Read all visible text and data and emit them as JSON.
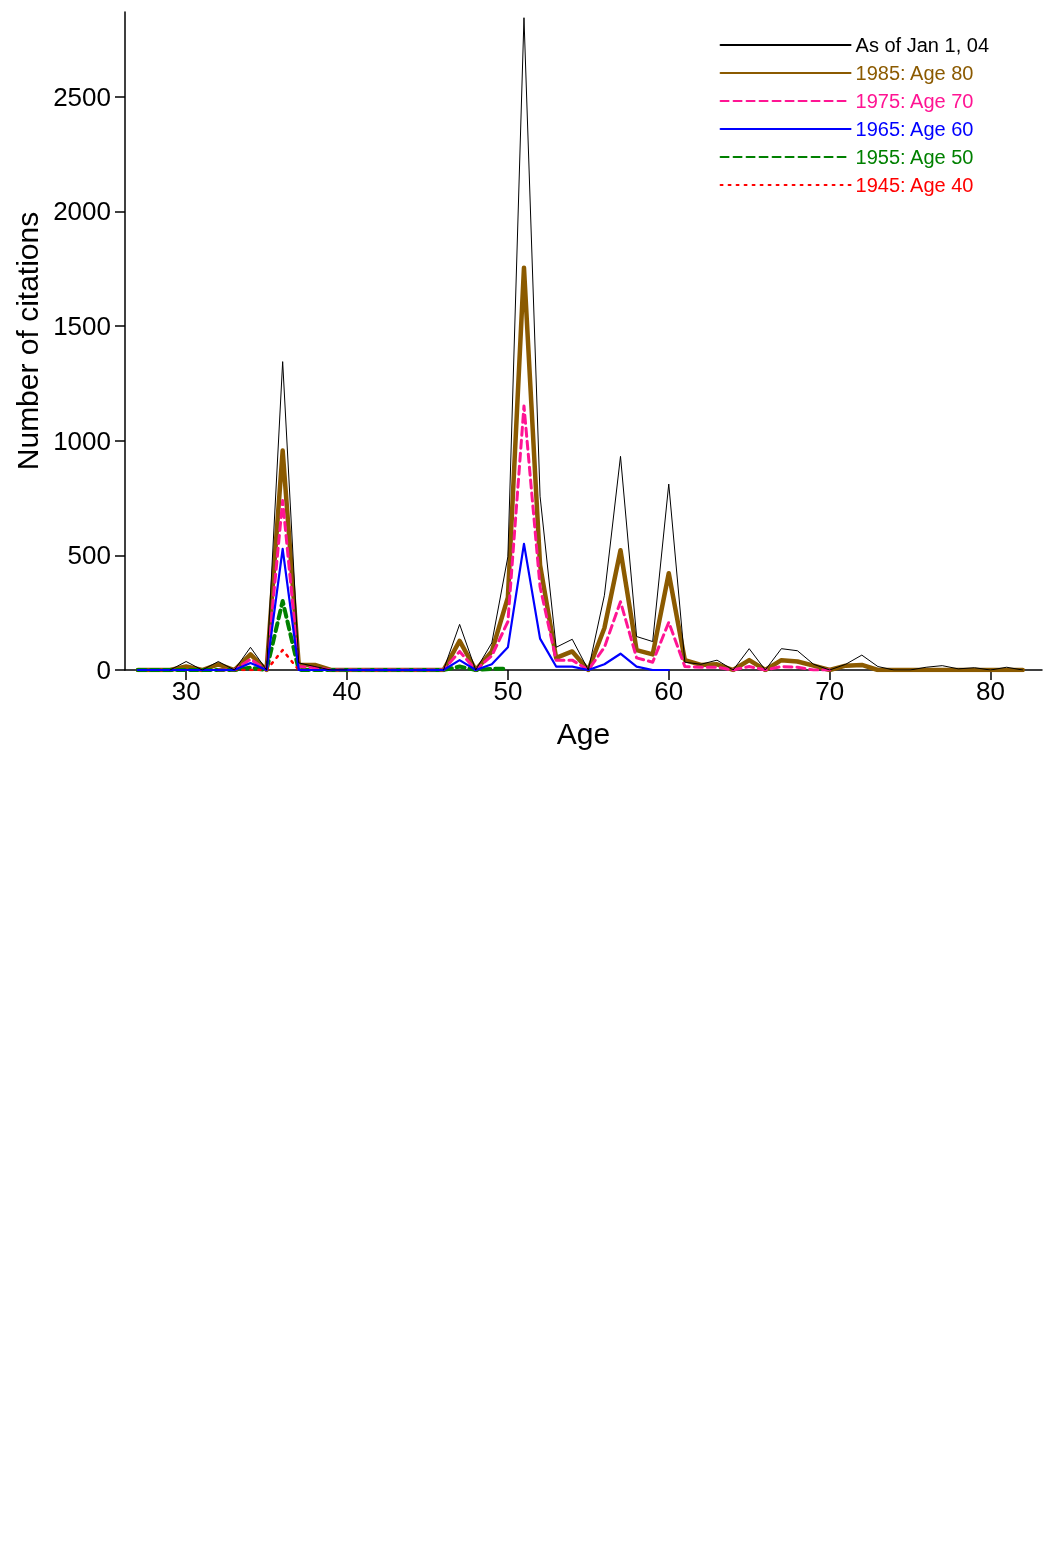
{
  "chart_data": {
    "type": "line",
    "xlabel": "Age",
    "ylabel": "Number of citations",
    "x": [
      27,
      28,
      29,
      30,
      31,
      32,
      33,
      34,
      35,
      36,
      37,
      38,
      39,
      40,
      41,
      42,
      43,
      44,
      45,
      46,
      47,
      48,
      49,
      50,
      51,
      52,
      53,
      54,
      55,
      56,
      57,
      58,
      59,
      60,
      61,
      62,
      63,
      64,
      65,
      66,
      67,
      68,
      69,
      70,
      71,
      72,
      73,
      74,
      75,
      76,
      77,
      78,
      79,
      80,
      81,
      82
    ],
    "xlim": [
      26.2,
      83.2
    ],
    "xticks": [
      30,
      40,
      50,
      60,
      70,
      80
    ],
    "ylim": [
      0,
      2870
    ],
    "yticks": [
      0,
      500,
      1000,
      1500,
      2000,
      2500
    ],
    "legend": "top right",
    "grid": false,
    "marker": "none",
    "series": [
      {
        "name": "As of Jan 1, 04",
        "color": "#000000",
        "line_style": "solid",
        "values": [
          null,
          null,
          0,
          37,
          0,
          37,
          0,
          99,
          0,
          1345,
          31,
          15,
          0,
          0,
          null,
          null,
          null,
          null,
          null,
          0,
          199,
          0,
          118,
          494,
          2845,
          758,
          99,
          134,
          0,
          326,
          932,
          146,
          124,
          811,
          34,
          25,
          43,
          0,
          93,
          0,
          93,
          84,
          25,
          0,
          25,
          65,
          15,
          0,
          0,
          12,
          19,
          5,
          10,
          0,
          12,
          0
        ]
      },
      {
        "name": "1985: Age 80",
        "color": "#8b5a00",
        "line_style": "solid",
        "values": [
          0,
          0,
          0,
          15,
          0,
          25,
          0,
          68,
          0,
          957,
          22,
          22,
          0,
          0,
          0,
          0,
          0,
          0,
          0,
          0,
          127,
          0,
          81,
          317,
          1755,
          457,
          53,
          81,
          0,
          183,
          522,
          87,
          68,
          422,
          43,
          22,
          25,
          0,
          43,
          0,
          43,
          37,
          19,
          0,
          19,
          22,
          0,
          0,
          0,
          0,
          0,
          0,
          0,
          0,
          0,
          0
        ]
      },
      {
        "name": "1975: Age 70",
        "color": "#ff1493",
        "line_style": "dashed",
        "values": [
          null,
          null,
          null,
          null,
          null,
          0,
          0,
          47,
          0,
          739,
          15,
          10,
          0,
          0,
          0,
          0,
          0,
          0,
          0,
          0,
          81,
          0,
          62,
          211,
          1152,
          363,
          43,
          43,
          0,
          99,
          298,
          53,
          34,
          208,
          15,
          12,
          12,
          0,
          15,
          0,
          15,
          12,
          0,
          0,
          null,
          null,
          null,
          null,
          null,
          null,
          null,
          null,
          null,
          null,
          null,
          null
        ]
      },
      {
        "name": "1965: Age 60",
        "color": "#0000ff",
        "line_style": "solid",
        "values": [
          0,
          0,
          0,
          0,
          0,
          0,
          0,
          31,
          0,
          528,
          0,
          0,
          0,
          0,
          0,
          0,
          0,
          0,
          0,
          0,
          43,
          0,
          25,
          99,
          550,
          137,
          15,
          15,
          0,
          25,
          71,
          15,
          0,
          0,
          null,
          null,
          null,
          null,
          null,
          null,
          null,
          null,
          null,
          null,
          null,
          null,
          null,
          null,
          null,
          null,
          null,
          null,
          null,
          null,
          null,
          null
        ]
      },
      {
        "name": "1955: Age 50",
        "color": "#008000",
        "line_style": "dashed",
        "values": [
          0,
          0,
          0,
          0,
          0,
          0,
          0,
          10,
          0,
          301,
          0,
          0,
          0,
          0,
          0,
          0,
          0,
          0,
          0,
          0,
          15,
          0,
          5,
          5,
          null,
          null,
          null,
          null,
          null,
          null,
          null,
          null,
          null,
          null,
          null,
          null,
          null,
          null,
          null,
          null,
          null,
          null,
          null,
          null,
          null,
          null,
          null,
          null,
          null,
          null,
          null,
          null,
          null,
          null,
          null,
          null
        ]
      },
      {
        "name": "1945: Age 40",
        "color": "#ff0000",
        "line_style": "dotted",
        "values": [
          null,
          null,
          null,
          null,
          null,
          null,
          0,
          0,
          0,
          87,
          0,
          null,
          null,
          null,
          null,
          null,
          null,
          null,
          null,
          null,
          null,
          null,
          null,
          null,
          null,
          null,
          null,
          null,
          null,
          null,
          null,
          null,
          null,
          null,
          null,
          null,
          null,
          null,
          null,
          null,
          null,
          null,
          null,
          null,
          null,
          null,
          null,
          null,
          null,
          null,
          null,
          null,
          null,
          null,
          null,
          null
        ]
      }
    ]
  }
}
